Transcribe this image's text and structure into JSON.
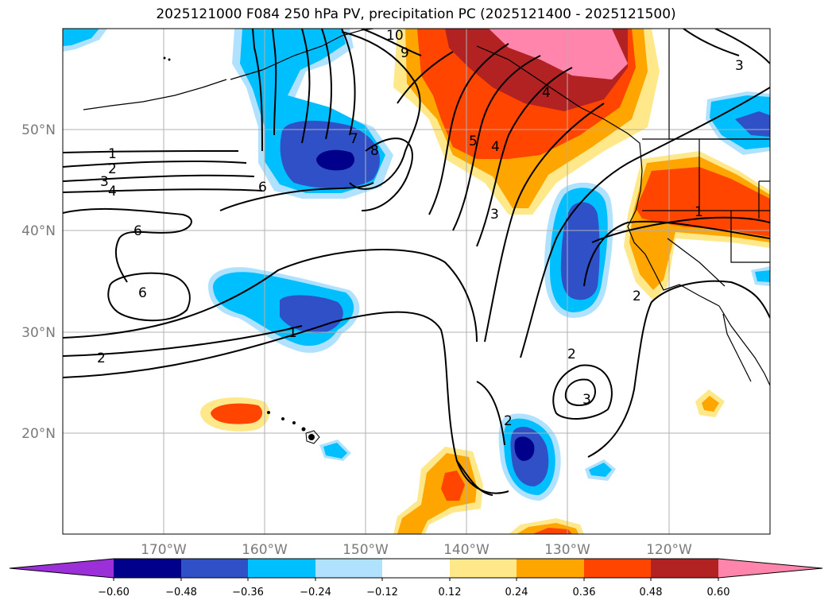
{
  "title": "2025121000 F084 250 hPa PV, precipitation PC (2025121400 - 2025121500)",
  "map": {
    "lon_labels": [
      "170°W",
      "160°W",
      "150°W",
      "140°W",
      "130°W",
      "120°W"
    ],
    "lat_labels": [
      "50°N",
      "40°N",
      "30°N",
      "20°N"
    ],
    "contour_labels": [
      "1",
      "2",
      "3",
      "4",
      "6",
      "6",
      "6",
      "7",
      "8",
      "9",
      "10",
      "5",
      "4",
      "3",
      "1",
      "2",
      "2",
      "3",
      "2",
      "1",
      "2",
      "3",
      "4"
    ]
  },
  "colorbar": {
    "ticks": [
      "−0.60",
      "−0.48",
      "−0.36",
      "−0.24",
      "−0.12",
      "0.12",
      "0.24",
      "0.36",
      "0.48",
      "0.60"
    ],
    "colors": [
      "#9b30d9",
      "#00008b",
      "#3050c8",
      "#00bfff",
      "#b0e2ff",
      "#ffffff",
      "#ffe88a",
      "#ffa500",
      "#ff4500",
      "#b22222",
      "#ff85ad"
    ]
  }
}
